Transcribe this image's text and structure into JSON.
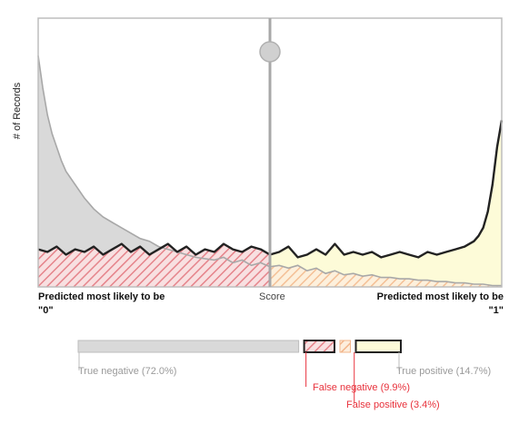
{
  "chart_data": {
    "type": "area",
    "ylabel": "# of Records",
    "x_center_label": "Score",
    "x_left_label": "Predicted most likely to be \"0\"",
    "x_right_label": "Predicted most likely to be \"1\"",
    "x_left_label_line1": "Predicted most likely to be",
    "x_left_label_line2": "\"0\"",
    "x_right_label_line1": "Predicted most likely to be",
    "x_right_label_line2": "\"1\"",
    "threshold": 0.5,
    "xlim": [
      0,
      1
    ],
    "ylim": [
      0,
      100
    ],
    "grid": false,
    "legend": "none",
    "series": [
      {
        "role": "negative-class",
        "fill": "#d9d9d9",
        "stroke": "#a8a8a8",
        "x": [
          0,
          0.01,
          0.02,
          0.03,
          0.04,
          0.05,
          0.06,
          0.08,
          0.1,
          0.12,
          0.14,
          0.16,
          0.18,
          0.2,
          0.22,
          0.24,
          0.26,
          0.28,
          0.3,
          0.32,
          0.34,
          0.36,
          0.38,
          0.4,
          0.42,
          0.44,
          0.46,
          0.48,
          0.5,
          0.52,
          0.54,
          0.56,
          0.58,
          0.6,
          0.62,
          0.64,
          0.66,
          0.68,
          0.7,
          0.72,
          0.74,
          0.76,
          0.78,
          0.8,
          0.82,
          0.84,
          0.86,
          0.88,
          0.9,
          0.92,
          0.94,
          0.96,
          0.98,
          1.0
        ],
        "y": [
          86,
          74,
          64,
          57,
          52,
          47,
          43,
          38,
          33,
          29,
          26,
          24,
          22,
          20,
          18,
          17,
          15,
          14,
          13,
          12,
          11,
          10.5,
          10,
          11,
          9,
          10,
          8,
          9,
          7.5,
          8,
          7,
          8,
          6,
          7,
          5,
          6,
          4.5,
          5,
          4,
          4.5,
          3.5,
          3.5,
          3,
          3,
          2.5,
          2.5,
          2,
          2,
          1.5,
          1.5,
          1,
          1,
          0.5,
          0.5
        ]
      },
      {
        "role": "positive-class",
        "fill": "#fdfbd8",
        "stroke": "#222222",
        "x": [
          0,
          0.02,
          0.04,
          0.06,
          0.08,
          0.1,
          0.12,
          0.14,
          0.16,
          0.18,
          0.2,
          0.22,
          0.24,
          0.26,
          0.28,
          0.3,
          0.32,
          0.34,
          0.36,
          0.38,
          0.4,
          0.42,
          0.44,
          0.46,
          0.48,
          0.5,
          0.52,
          0.54,
          0.56,
          0.58,
          0.6,
          0.62,
          0.64,
          0.66,
          0.68,
          0.7,
          0.72,
          0.74,
          0.76,
          0.78,
          0.8,
          0.82,
          0.84,
          0.86,
          0.88,
          0.9,
          0.92,
          0.94,
          0.95,
          0.96,
          0.97,
          0.98,
          0.99,
          1.0
        ],
        "y": [
          14,
          13,
          15,
          12,
          14,
          13,
          15,
          12,
          14,
          16,
          13,
          15,
          12,
          14,
          16,
          13,
          15,
          12,
          14,
          13,
          16,
          14,
          13,
          15,
          14,
          12,
          13,
          15,
          11,
          12,
          14,
          12,
          16,
          12,
          13,
          12,
          13,
          11,
          12,
          13,
          12,
          11,
          13,
          12,
          13,
          14,
          15,
          17,
          19,
          22,
          28,
          38,
          52,
          62
        ]
      }
    ],
    "hatch_colors": {
      "false_negative": "#e5838a",
      "false_positive": "#f2b58a"
    },
    "summary_bar": {
      "segments": [
        {
          "key": "true_negative",
          "label": "True negative (72.0%)",
          "value": 72.0,
          "color": "#d9d9d9",
          "text_color": "#9a9a9a"
        },
        {
          "key": "false_negative",
          "label": "False negative (9.9%)",
          "value": 9.9,
          "color": "#e5838a",
          "text_color": "#e8323c"
        },
        {
          "key": "false_positive",
          "label": "False positive (3.4%)",
          "value": 3.4,
          "color": "#f2b58a",
          "text_color": "#e8323c"
        },
        {
          "key": "true_positive",
          "label": "True positive (14.7%)",
          "value": 14.7,
          "color": "#fdfbd8",
          "text_color": "#9a9a9a"
        }
      ]
    }
  }
}
